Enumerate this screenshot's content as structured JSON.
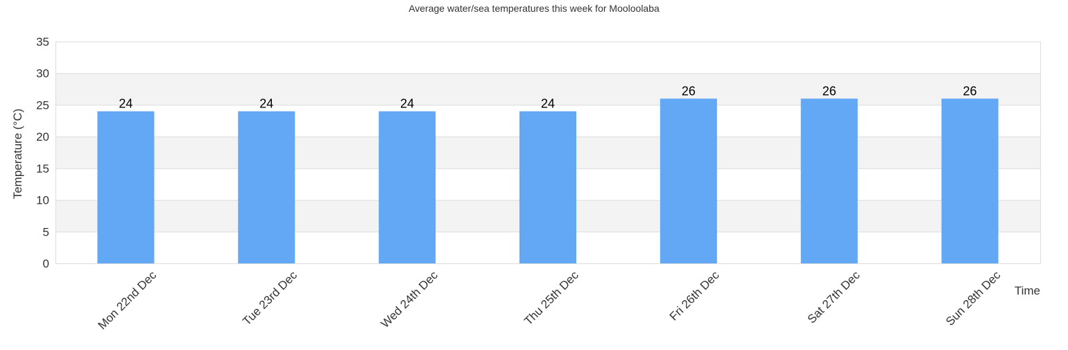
{
  "chart_data": {
    "type": "bar",
    "title": "Average water/sea temperatures this week for Mooloolaba",
    "xlabel": "Time",
    "ylabel": "Temperature (°C)",
    "ylim": [
      0,
      35
    ],
    "yticks": [
      0,
      5,
      10,
      15,
      20,
      25,
      30,
      35
    ],
    "categories": [
      "Mon 22nd Dec",
      "Tue 23rd Dec",
      "Wed 24th Dec",
      "Thu 25th Dec",
      "Fri 26th Dec",
      "Sat 27th Dec",
      "Sun 28th Dec"
    ],
    "values": [
      24,
      24,
      24,
      24,
      26,
      26,
      26
    ],
    "grid": true,
    "bar_color": "#62a8f4",
    "band_color": "#f3f3f3"
  }
}
